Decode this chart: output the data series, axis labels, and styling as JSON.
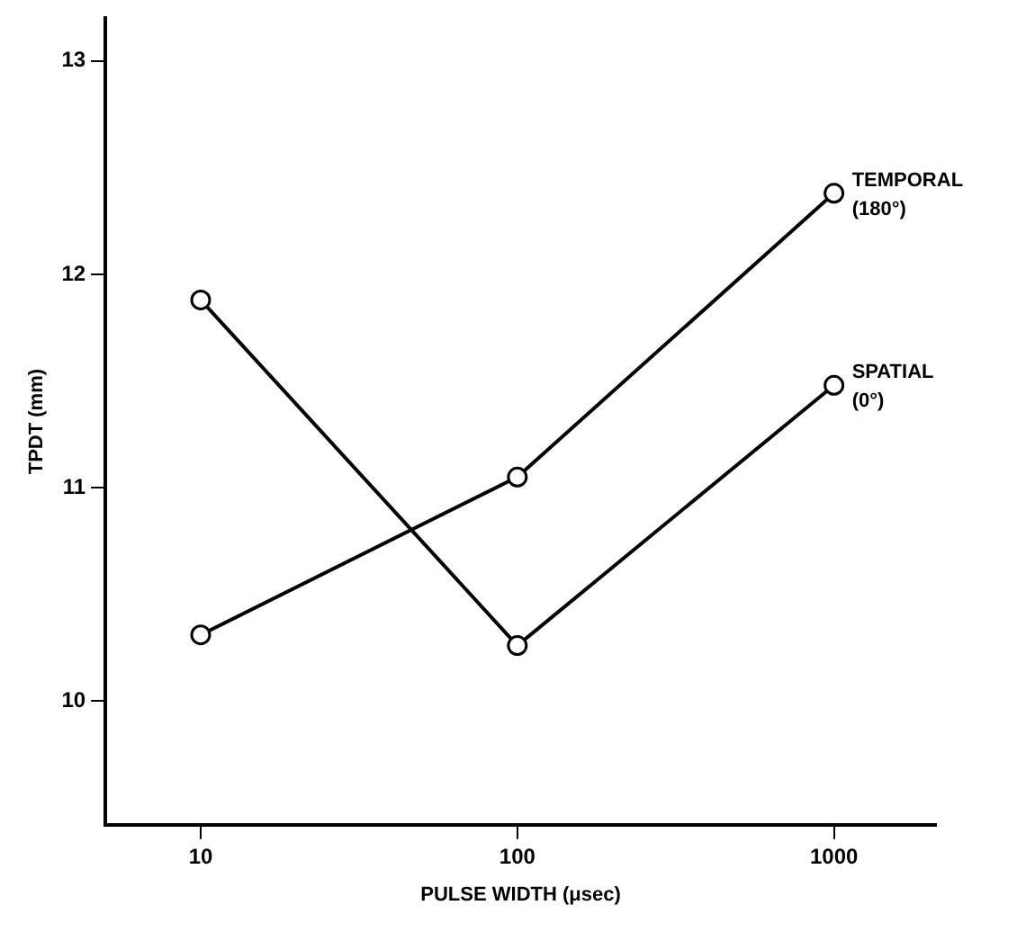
{
  "chart_data": {
    "type": "line",
    "xlabel": "PULSE WIDTH (μsec)",
    "ylabel": "TPDT (mm)",
    "log": "x",
    "x": [
      10,
      100,
      1000
    ],
    "series": [
      {
        "name": "TEMPORAL (180°)",
        "color": "#000000",
        "values": [
          10.31,
          11.05,
          12.38
        ]
      },
      {
        "name": "SPATIAL (0°)",
        "color": "#000000",
        "values": [
          11.88,
          10.26,
          11.48
        ]
      }
    ],
    "xlim": [
      5,
      2100
    ],
    "xticks": [
      10,
      100,
      1000
    ],
    "ylim": [
      9.42,
      13.2
    ],
    "yticks": [
      10,
      11,
      12,
      13
    ],
    "grid": false,
    "legend": false,
    "marker": "circle",
    "line_style": "solid"
  }
}
